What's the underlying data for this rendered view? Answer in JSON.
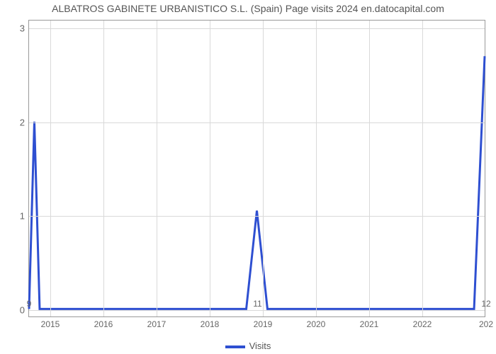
{
  "chart": {
    "type": "line",
    "title": "ALBATROS GABINETE URBANISTICO S.L. (Spain) Page visits 2024 en.datocapital.com",
    "title_fontsize": 14,
    "title_color": "#555555",
    "background_color": "#ffffff",
    "plot_border_color": "#999999",
    "grid_color": "#d9d9d9",
    "line_color": "#2e4fd1",
    "line_width": 3,
    "xlim": [
      2014.6,
      2023.2
    ],
    "ylim": [
      -0.08,
      3.08
    ],
    "yticks": [
      0,
      1,
      2,
      3
    ],
    "xticks": [
      2015,
      2016,
      2017,
      2018,
      2019,
      2020,
      2021,
      2022
    ],
    "xtick_right_edge_label": "202",
    "tick_fontsize": 13,
    "tick_color": "#666666",
    "point_labels": [
      {
        "x": 2014.6,
        "text": "9"
      },
      {
        "x": 2018.9,
        "text": "11"
      },
      {
        "x": 2023.2,
        "text": "12"
      }
    ],
    "series": {
      "name": "Visits",
      "points": [
        {
          "x": 2014.6,
          "y": 0.0
        },
        {
          "x": 2014.7,
          "y": 2.0
        },
        {
          "x": 2014.8,
          "y": 0.0
        },
        {
          "x": 2018.7,
          "y": 0.0
        },
        {
          "x": 2018.9,
          "y": 1.05
        },
        {
          "x": 2019.1,
          "y": 0.0
        },
        {
          "x": 2023.0,
          "y": 0.0
        },
        {
          "x": 2023.2,
          "y": 2.7
        }
      ]
    },
    "legend_label": "Visits"
  }
}
